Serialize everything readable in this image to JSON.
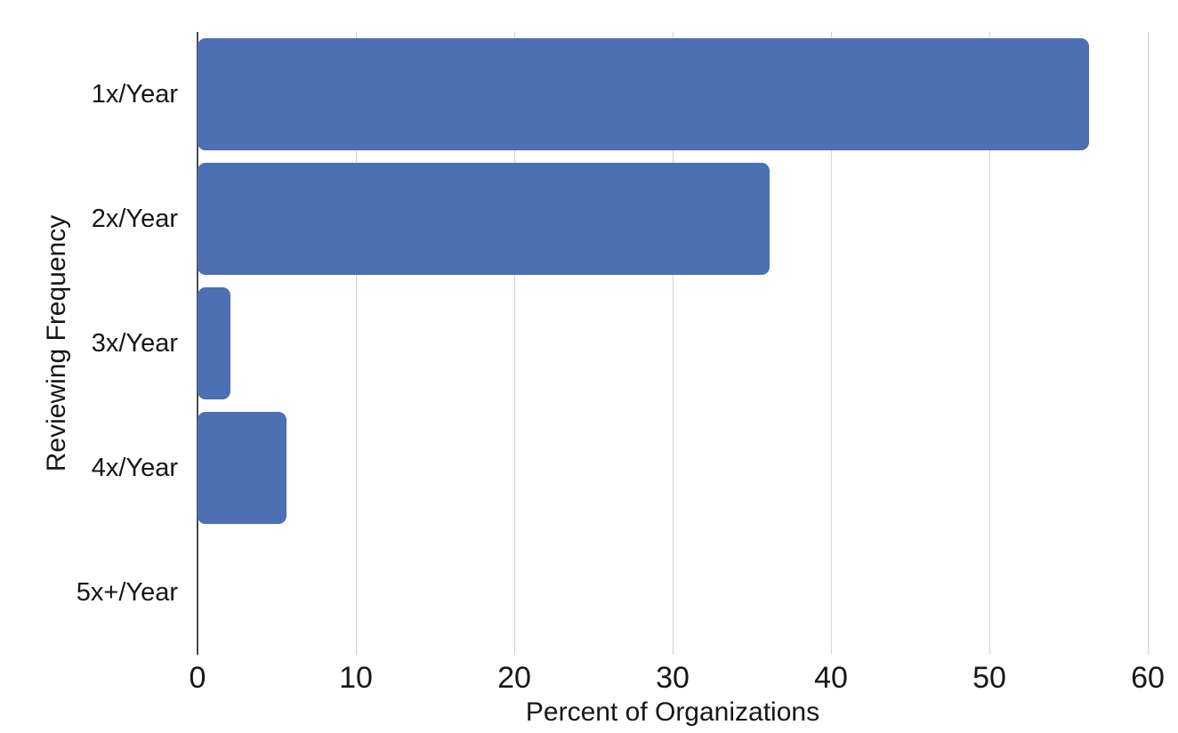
{
  "figure": {
    "background": "#ffffff",
    "text_color": "#161616"
  },
  "chart_data": {
    "type": "bar",
    "orientation": "horizontal",
    "title": "",
    "categories": [
      "1x/Year",
      "2x/Year",
      "3x/Year",
      "4x/Year",
      "5x+/Year"
    ],
    "values": [
      56.3,
      36.1,
      2.1,
      5.6,
      0
    ],
    "xlabel": "Percent of Organizations",
    "ylabel": "Reviewing Frequency",
    "xlim": [
      0,
      60
    ],
    "xticks": [
      0,
      10,
      20,
      30,
      40,
      50,
      60
    ],
    "grid": "vertical-gridlines-on",
    "legend": "none",
    "bar_color": "#4C70B2",
    "gridline_color": "#D4D4D4",
    "axis_line_color": "#4A4A4A"
  }
}
